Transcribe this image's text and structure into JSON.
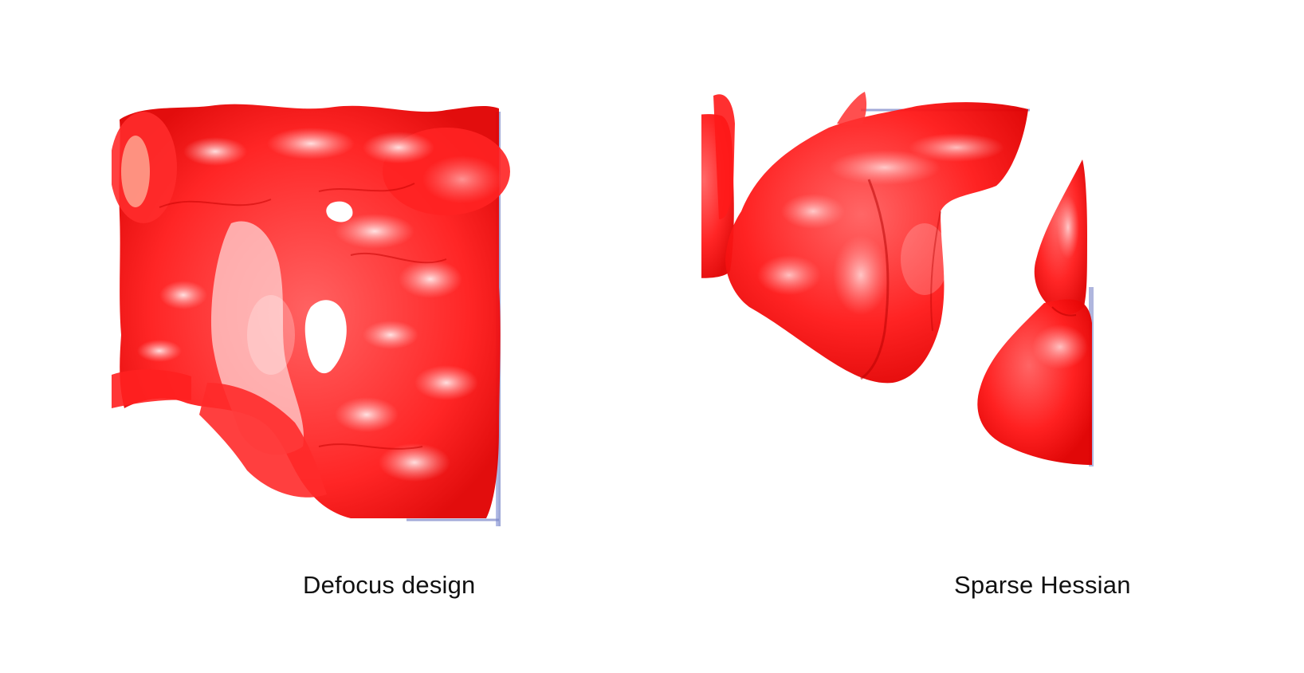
{
  "panels": [
    {
      "caption": "Defocus design"
    },
    {
      "caption": "Sparse Hessian"
    }
  ],
  "colors": {
    "surface": "#ff1a1a",
    "surface_dark": "#d60000",
    "highlight": "#ffd6d6",
    "box_edge": "#7a86c8",
    "background": "#ffffff"
  }
}
